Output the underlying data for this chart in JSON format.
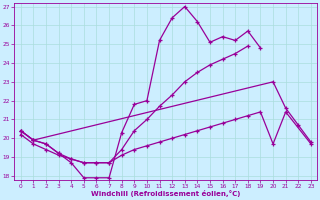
{
  "xlabel": "Windchill (Refroidissement éolien,°C)",
  "xlim": [
    -0.5,
    23.5
  ],
  "ylim": [
    17.8,
    27.2
  ],
  "yticks": [
    18,
    19,
    20,
    21,
    22,
    23,
    24,
    25,
    26,
    27
  ],
  "xticks": [
    0,
    1,
    2,
    3,
    4,
    5,
    6,
    7,
    8,
    9,
    10,
    11,
    12,
    13,
    14,
    15,
    16,
    17,
    18,
    19,
    20,
    21,
    22,
    23
  ],
  "background_color": "#cceeff",
  "grid_color": "#aadddd",
  "line_color": "#990099",
  "s1_x": [
    0,
    1,
    2,
    3,
    4,
    5,
    6,
    7,
    8,
    9,
    10,
    11,
    12,
    13,
    14,
    15,
    16,
    17,
    18,
    19
  ],
  "s1_y": [
    20.4,
    19.9,
    19.7,
    19.2,
    18.7,
    17.9,
    17.9,
    17.9,
    20.3,
    21.8,
    22.0,
    25.2,
    26.4,
    27.0,
    26.2,
    25.1,
    25.4,
    25.2,
    25.7,
    24.8
  ],
  "s2_x": [
    0,
    1,
    2,
    3,
    4,
    5,
    6,
    7,
    8,
    9,
    10,
    11,
    12,
    13,
    14,
    15,
    16,
    17,
    18
  ],
  "s2_y": [
    20.4,
    19.9,
    19.7,
    19.2,
    18.9,
    18.7,
    18.7,
    18.7,
    19.4,
    20.4,
    21.0,
    21.7,
    22.3,
    23.0,
    23.5,
    23.9,
    24.2,
    24.5,
    24.9
  ],
  "s3_x": [
    0,
    1,
    2,
    3,
    4,
    5,
    6,
    7,
    8,
    9,
    10,
    11,
    12,
    13,
    14,
    15,
    16,
    17,
    18,
    19,
    20,
    21,
    23
  ],
  "s3_y": [
    20.2,
    19.7,
    19.4,
    19.1,
    18.9,
    18.7,
    18.7,
    18.7,
    19.1,
    19.4,
    19.6,
    19.8,
    20.0,
    20.2,
    20.4,
    20.6,
    20.8,
    21.0,
    21.2,
    21.4,
    19.7,
    21.4,
    19.7
  ],
  "s4_x": [
    0,
    1,
    20,
    21,
    22,
    23
  ],
  "s4_y": [
    20.4,
    19.9,
    23.0,
    21.6,
    20.7,
    19.8
  ]
}
